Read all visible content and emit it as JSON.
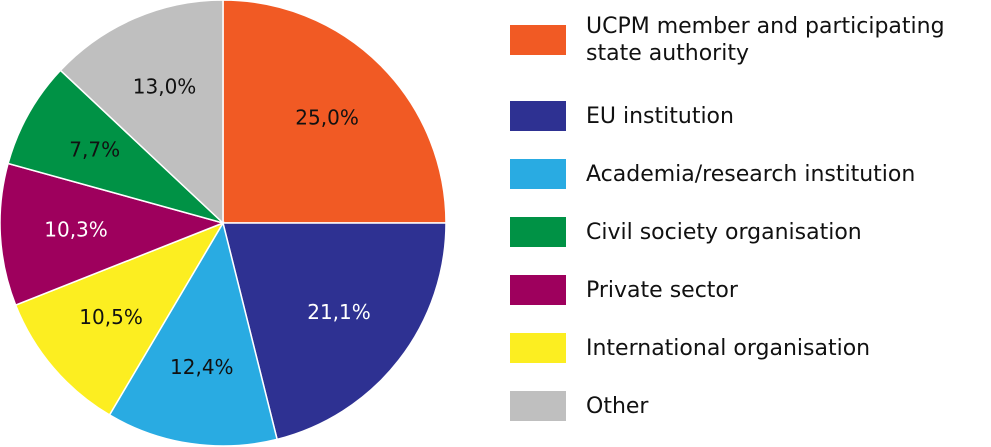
{
  "chart_data": {
    "type": "pie",
    "categories": [
      "UCPM member and participating state authority",
      "EU institution",
      "Academia/research institution",
      "International organisation",
      "Private sector",
      "Civil society organisation",
      "Other"
    ],
    "values": [
      25.0,
      21.1,
      12.4,
      10.5,
      10.3,
      7.7,
      13.0
    ],
    "value_labels": [
      "25,0%",
      "21,1%",
      "12,4%",
      "10,5%",
      "10,3%",
      "7,7%",
      "13,0%"
    ],
    "colors": [
      "#f15a24",
      "#2e3192",
      "#29abe2",
      "#fcee21",
      "#9e005d",
      "#009245",
      "#bfbfbf"
    ],
    "legend": "right"
  }
}
